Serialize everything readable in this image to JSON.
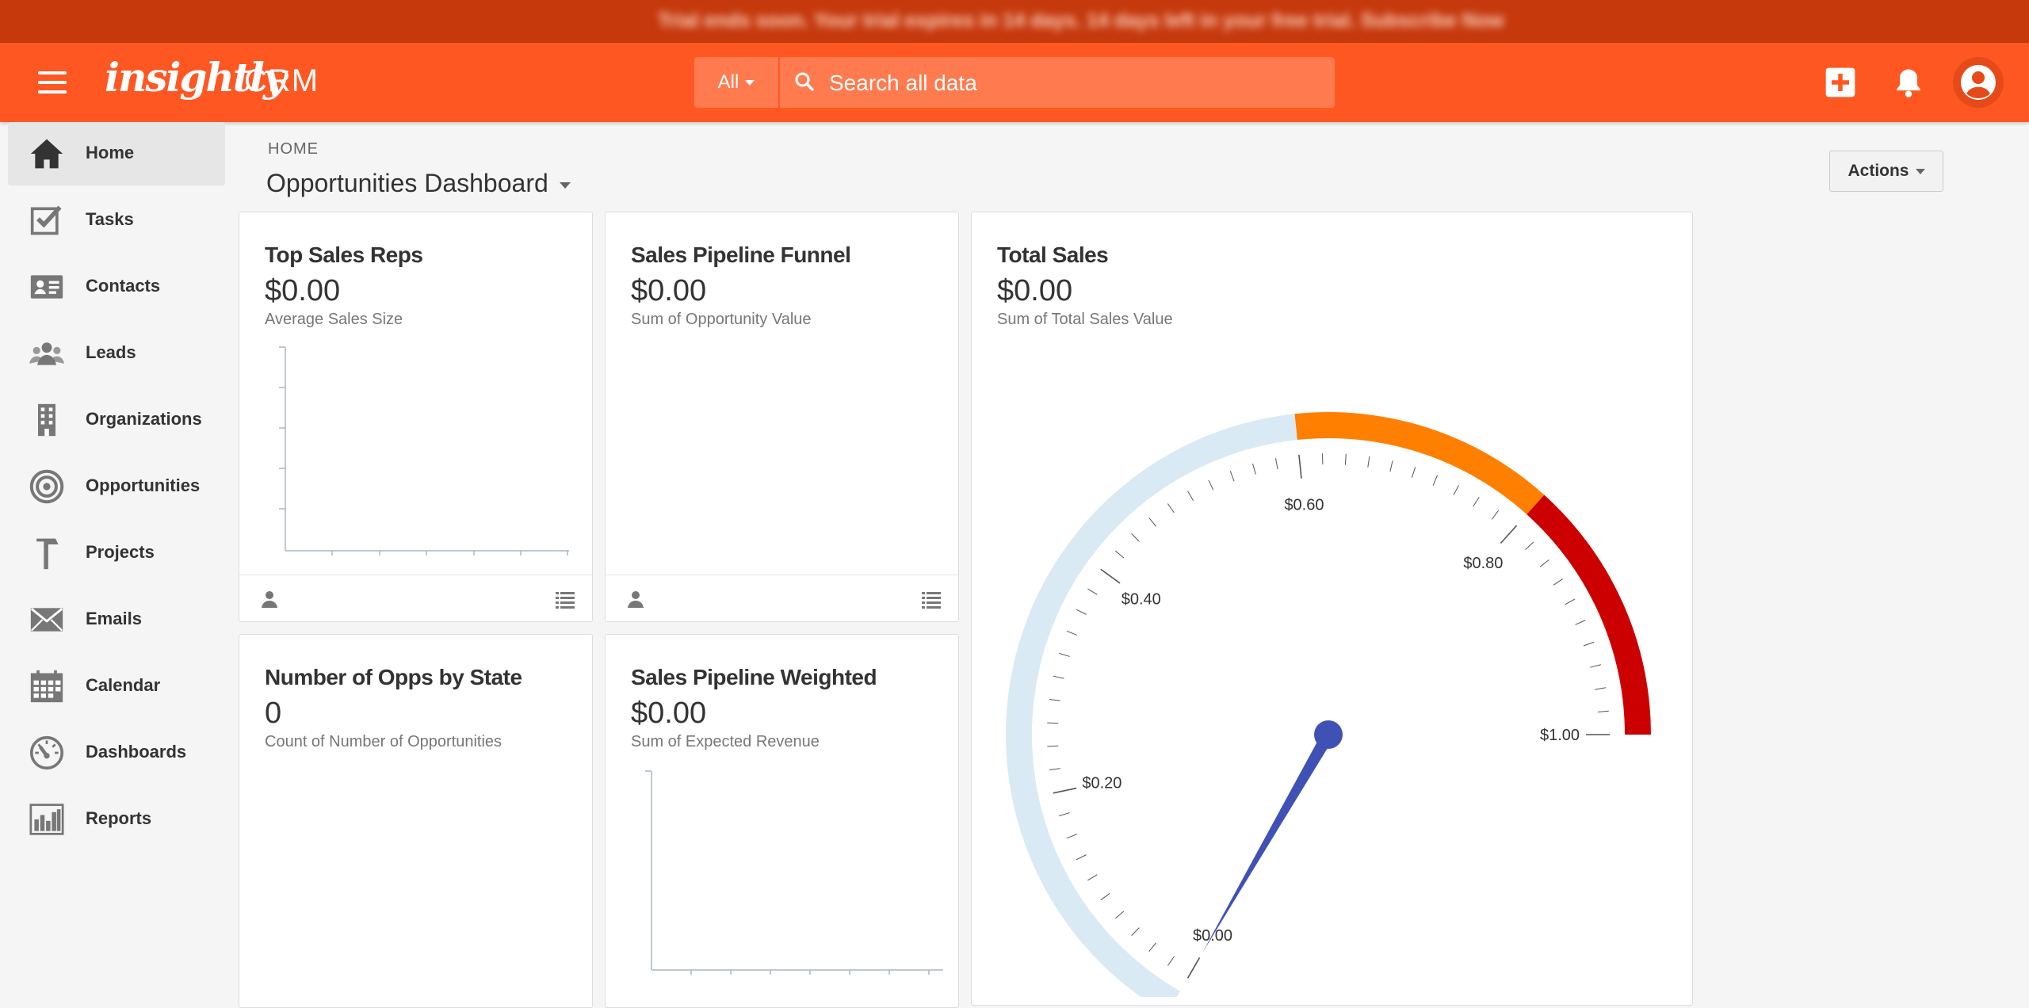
{
  "trial_banner": {
    "text": "Trial ends soon. Your trial expires in 14 days. 14 days left in your free trial. Subscribe Now"
  },
  "header": {
    "logo": "insightly",
    "product": "CRM",
    "search": {
      "scope": "All",
      "placeholder": "Search all data"
    },
    "icons": [
      "menu-icon",
      "add-icon",
      "bell-icon",
      "user-account-icon"
    ],
    "accent_color": "#ff5722"
  },
  "sidebar": {
    "items": [
      {
        "label": "Home",
        "icon": "home-icon",
        "active": true
      },
      {
        "label": "Tasks",
        "icon": "tasks-icon"
      },
      {
        "label": "Contacts",
        "icon": "contacts-icon"
      },
      {
        "label": "Leads",
        "icon": "leads-icon"
      },
      {
        "label": "Organizations",
        "icon": "organizations-icon"
      },
      {
        "label": "Opportunities",
        "icon": "opportunities-icon"
      },
      {
        "label": "Projects",
        "icon": "projects-icon"
      },
      {
        "label": "Emails",
        "icon": "emails-icon"
      },
      {
        "label": "Calendar",
        "icon": "calendar-icon"
      },
      {
        "label": "Dashboards",
        "icon": "dashboards-icon"
      },
      {
        "label": "Reports",
        "icon": "reports-icon"
      }
    ]
  },
  "main": {
    "breadcrumb": "HOME",
    "title": "Opportunities Dashboard",
    "actions_label": "Actions",
    "cards": {
      "top_reps": {
        "title": "Top Sales Reps",
        "value": "$0.00",
        "subtitle": "Average Sales Size"
      },
      "funnel": {
        "title": "Sales Pipeline Funnel",
        "value": "$0.00",
        "subtitle": "Sum of Opportunity Value"
      },
      "total_sales": {
        "title": "Total Sales",
        "value": "$0.00",
        "subtitle": "Sum of Total Sales Value"
      },
      "opps_by_state": {
        "title": "Number of Opps by State",
        "value": "0",
        "subtitle": "Count of Number of Opportunities"
      },
      "weighted": {
        "title": "Sales Pipeline Weighted",
        "value": "$0.00",
        "subtitle": "Sum of Expected Revenue"
      }
    }
  },
  "gauge": {
    "min": 0,
    "max": 1,
    "value": 0,
    "tick_labels": [
      "$0.00",
      "$0.20",
      "$0.40",
      "$0.60",
      "$0.80",
      "$1.00"
    ],
    "bands": [
      {
        "from": 0,
        "to": 0.6,
        "color": "#daeaf5"
      },
      {
        "from": 0.6,
        "to": 0.8,
        "color": "#ff7f00"
      },
      {
        "from": 0.8,
        "to": 1.0,
        "color": "#cc0000"
      }
    ],
    "needle_color": "#3f51b5"
  }
}
